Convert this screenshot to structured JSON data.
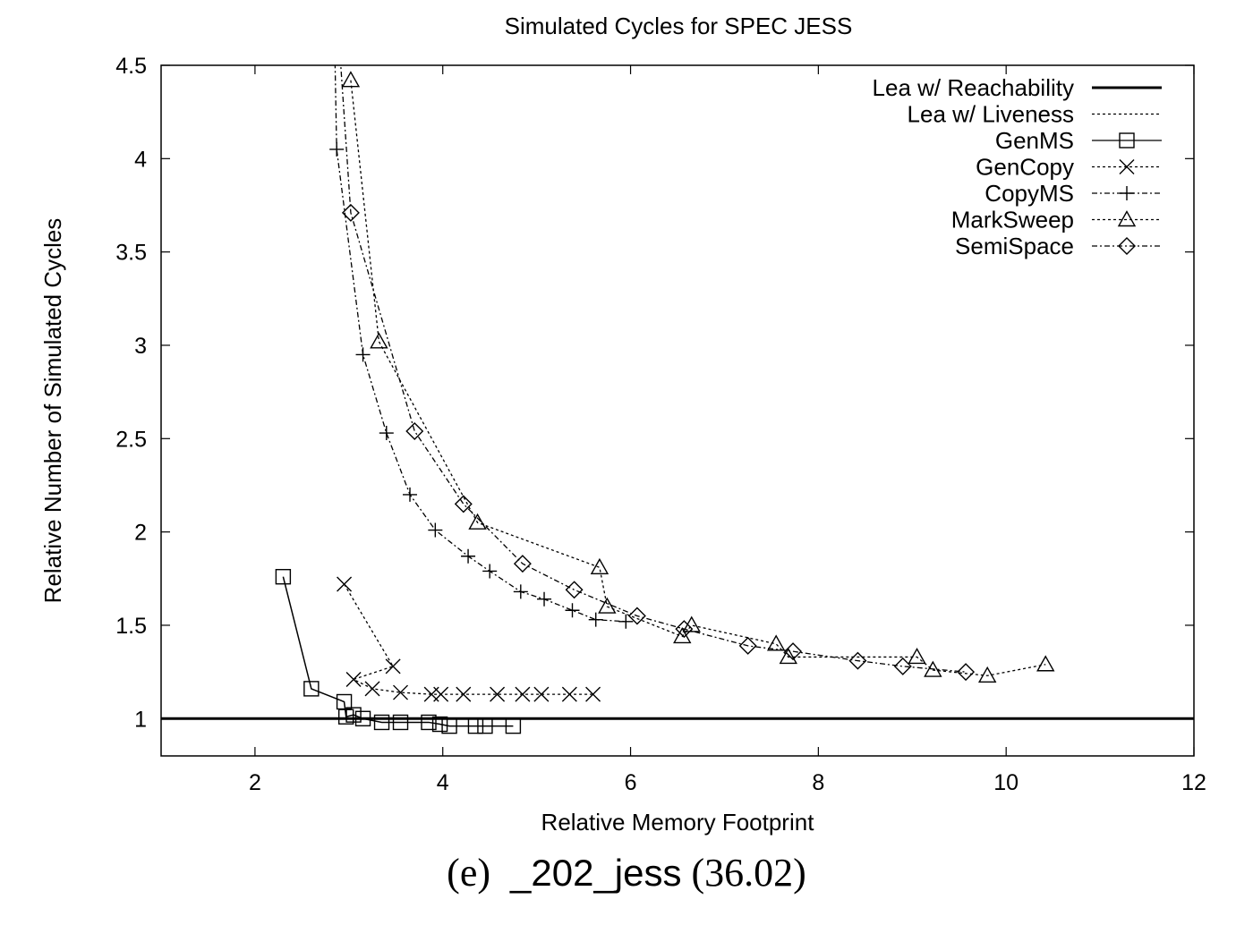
{
  "chart_data": {
    "type": "line",
    "title": "Simulated Cycles for SPEC JESS",
    "xlabel": "Relative Memory Footprint",
    "ylabel": "Relative Number of Simulated Cycles",
    "xlim": [
      1,
      12
    ],
    "ylim": [
      0.8,
      4.5
    ],
    "xticks": [
      2,
      4,
      6,
      8,
      10,
      12
    ],
    "yticks": [
      1,
      1.5,
      2,
      2.5,
      3,
      3.5,
      4,
      4.5
    ],
    "xtick_labels": [
      "2",
      "4",
      "6",
      "8",
      "10",
      "12"
    ],
    "ytick_labels": [
      "1",
      "1.5",
      "2",
      "2.5",
      "3",
      "3.5",
      "4",
      "4.5"
    ],
    "grid": false,
    "legend_position": "top-right",
    "series": [
      {
        "name": "Lea w/ Reachability",
        "style": "solid",
        "marker": "none",
        "hline": 1.0,
        "x": [],
        "y": []
      },
      {
        "name": "Lea w/ Liveness",
        "style": "dotted",
        "marker": "none",
        "hline": 1.0,
        "x": [],
        "y": []
      },
      {
        "name": "GenMS",
        "style": "solid",
        "marker": "square",
        "x": [
          2.3,
          2.6,
          2.95,
          2.97,
          3.05,
          3.15,
          3.35,
          3.55,
          3.85,
          3.97,
          4.07,
          4.35,
          4.45,
          4.75
        ],
        "y": [
          1.76,
          1.16,
          1.09,
          1.01,
          1.02,
          1.0,
          0.98,
          0.98,
          0.98,
          0.97,
          0.96,
          0.96,
          0.96,
          0.96
        ]
      },
      {
        "name": "GenCopy",
        "style": "dotted",
        "marker": "x",
        "x": [
          2.95,
          3.47,
          3.05,
          3.25,
          3.55,
          3.88,
          3.98,
          4.22,
          4.58,
          4.85,
          5.05,
          5.35,
          5.6
        ],
        "y": [
          1.72,
          1.28,
          1.21,
          1.16,
          1.14,
          1.13,
          1.13,
          1.13,
          1.13,
          1.13,
          1.13,
          1.13,
          1.13
        ]
      },
      {
        "name": "CopyMS",
        "style": "dashdot",
        "marker": "plus",
        "x": [
          2.85,
          2.87,
          3.15,
          3.4,
          3.65,
          3.92,
          4.27,
          4.5,
          4.83,
          5.08,
          5.38,
          5.63,
          5.95
        ],
        "y": [
          4.58,
          4.05,
          2.95,
          2.53,
          2.2,
          2.01,
          1.87,
          1.79,
          1.68,
          1.64,
          1.58,
          1.53,
          1.52
        ]
      },
      {
        "name": "MarkSweep",
        "style": "dotted",
        "marker": "triangle",
        "x": [
          3.02,
          3.32,
          4.37,
          5.67,
          5.75,
          6.55,
          6.65,
          7.55,
          7.68,
          9.05,
          9.22,
          9.8,
          10.42
        ],
        "y": [
          4.42,
          3.02,
          2.05,
          1.81,
          1.6,
          1.44,
          1.5,
          1.4,
          1.33,
          1.33,
          1.26,
          1.23,
          1.29
        ]
      },
      {
        "name": "SemiSpace",
        "style": "dashdot",
        "marker": "diamond",
        "x": [
          2.9,
          3.02,
          3.7,
          4.22,
          4.85,
          5.4,
          6.07,
          6.57,
          7.25,
          7.73,
          8.42,
          8.9,
          9.57
        ],
        "y": [
          4.6,
          3.71,
          2.54,
          2.15,
          1.83,
          1.69,
          1.55,
          1.48,
          1.39,
          1.36,
          1.31,
          1.28,
          1.25
        ]
      }
    ]
  },
  "caption": {
    "prefix": "(e)",
    "name": "_202_jess",
    "value": "(36.02)"
  }
}
